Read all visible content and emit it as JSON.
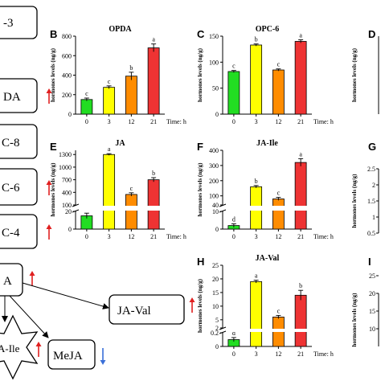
{
  "colors": {
    "bar_0": "#22dd22",
    "bar_3": "#ffff00",
    "bar_12": "#ff8c00",
    "bar_21": "#ee3333",
    "up_arrow": "#e02020",
    "down_arrow": "#3a6fd8"
  },
  "pathway": {
    "nodes": [
      "-3",
      "DA",
      "C-8",
      "C-6",
      "C-4",
      "A",
      "A-Ile",
      "JA-Val",
      "MeJA"
    ],
    "arrow_up_icon": "up-arrow-icon",
    "arrow_down_icon": "down-arrow-icon"
  },
  "letters": [
    "B",
    "C",
    "D",
    "E",
    "F",
    "G",
    "H",
    "I"
  ],
  "common": {
    "ylabel": "hormones levels (ng/g)",
    "time_label": "Time: h"
  },
  "chart_data": [
    {
      "panel": "B",
      "title": "OPDA",
      "type": "bar",
      "categories": [
        "0",
        "3",
        "12",
        "21"
      ],
      "values": [
        150,
        275,
        390,
        680
      ],
      "errors": [
        15,
        15,
        40,
        40
      ],
      "significance": [
        "c",
        "c",
        "b",
        "a"
      ],
      "ylim": [
        0,
        800
      ],
      "yticks": [
        0,
        200,
        400,
        600,
        800
      ],
      "ylabel": "hormones levels (ng/g)",
      "xlabel": "Time: h"
    },
    {
      "panel": "C",
      "title": "OPC-6",
      "type": "bar",
      "categories": [
        "0",
        "3",
        "12",
        "21"
      ],
      "values": [
        82,
        133,
        85,
        140
      ],
      "errors": [
        2,
        2,
        2,
        3
      ],
      "significance": [
        "c",
        "b",
        "c",
        "a"
      ],
      "ylim": [
        0,
        150
      ],
      "yticks": [
        0,
        50,
        100,
        150
      ],
      "ylabel": "hormones levels (ng/g)",
      "xlabel": "Time: h"
    },
    {
      "panel": "E",
      "title": "JA",
      "type": "bar",
      "broken_axis": true,
      "categories": [
        "0",
        "3",
        "12",
        "21"
      ],
      "values": [
        15,
        1300,
        350,
        700
      ],
      "errors": [
        3,
        20,
        40,
        50
      ],
      "significance": [
        "d",
        "a",
        "c",
        "b"
      ],
      "ylim_lower": [
        0,
        20
      ],
      "yticks_lower": [
        0,
        20
      ],
      "ylim_upper": [
        100,
        1400
      ],
      "yticks_upper": [
        100,
        400,
        700,
        1000,
        1300
      ],
      "ylabel": "hormones levels (ng/g)",
      "xlabel": "Time: h"
    },
    {
      "panel": "F",
      "title": "JA-Ile",
      "type": "bar",
      "broken_axis": true,
      "categories": [
        "0",
        "3",
        "12",
        "21"
      ],
      "values": [
        2,
        160,
        80,
        320
      ],
      "errors": [
        1,
        8,
        10,
        25
      ],
      "significance": [
        "d",
        "b",
        "c",
        "a"
      ],
      "ylim_lower": [
        0,
        10
      ],
      "yticks_lower": [
        0,
        10
      ],
      "ylim_upper": [
        40,
        400
      ],
      "yticks_upper": [
        40,
        100,
        200,
        300,
        400
      ],
      "ylabel": "hormones levels (ng/g)",
      "xlabel": "Time: h"
    },
    {
      "panel": "H",
      "title": "JA-Val",
      "type": "bar",
      "broken_axis": true,
      "categories": [
        "0",
        "3",
        "12",
        "21"
      ],
      "values": [
        0.1,
        19,
        6,
        14
      ],
      "errors": [
        0.03,
        0.5,
        0.6,
        1.8
      ],
      "significance": [
        "d",
        "a",
        "c",
        "b"
      ],
      "ylim_lower": [
        0,
        0.2
      ],
      "yticks_lower": [
        0,
        0.2
      ],
      "ylim_upper": [
        2,
        25
      ],
      "yticks_upper": [
        2,
        5,
        10,
        15,
        20,
        25
      ],
      "ylabel": "hormones levels (ng/g)",
      "xlabel": "Time: h"
    },
    {
      "panel": "D",
      "type": "bar",
      "values": [],
      "yticks": [],
      "ylabel": "hormones levels (ng/g)"
    },
    {
      "panel": "G",
      "type": "bar",
      "values": [],
      "yticks": [
        2.5,
        2.0,
        1.5,
        1.0,
        0.5
      ],
      "ylabel": "hormones levels (ng/g)"
    },
    {
      "panel": "I",
      "type": "bar",
      "values": [],
      "yticks": [
        25,
        20,
        15,
        10
      ],
      "ylabel": "hormones levels (ng/g)"
    }
  ]
}
